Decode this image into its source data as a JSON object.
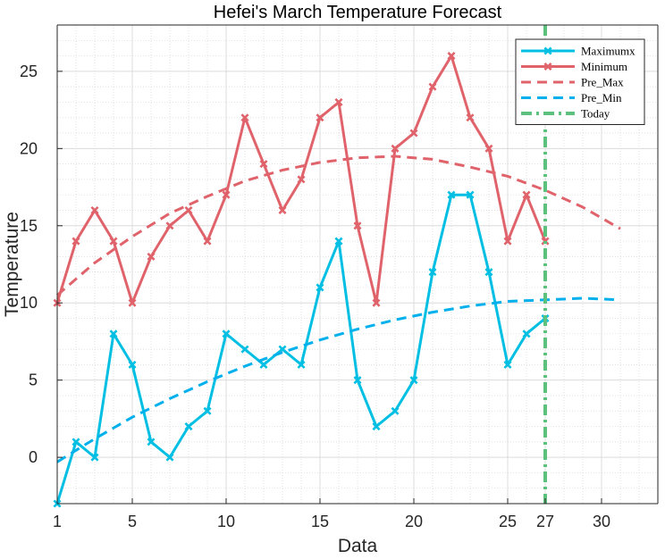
{
  "chart_data": {
    "type": "line",
    "title": "Hefei's March Temperature Forecast",
    "xlabel": "Data",
    "ylabel": "Temperature",
    "xlim": [
      1,
      33
    ],
    "ylim": [
      -3,
      28
    ],
    "x_ticks": [
      1,
      5,
      10,
      15,
      20,
      25,
      27,
      30
    ],
    "y_ticks": [
      0,
      5,
      10,
      15,
      20,
      25
    ],
    "grid": true,
    "minor_grid": true,
    "legend_position": "top-right",
    "x": [
      1,
      2,
      3,
      4,
      5,
      6,
      7,
      8,
      9,
      10,
      11,
      12,
      13,
      14,
      15,
      16,
      17,
      18,
      19,
      20,
      21,
      22,
      23,
      24,
      25,
      26,
      27
    ],
    "series": [
      {
        "name": "Maximumx",
        "style": "solid-marker",
        "color": "#00bfe3",
        "values": [
          -3,
          1,
          0,
          8,
          6,
          1,
          0,
          2,
          3,
          8,
          7,
          6,
          7,
          6,
          11,
          14,
          5,
          2,
          3,
          5,
          12,
          17,
          17,
          12,
          6,
          8,
          9
        ]
      },
      {
        "name": "Minimum",
        "style": "solid-marker",
        "color": "#e0636b",
        "values": [
          10,
          14,
          16,
          14,
          10,
          13,
          15,
          16,
          14,
          17,
          22,
          19,
          16,
          18,
          22,
          23,
          15,
          10,
          20,
          21,
          24,
          26,
          22,
          20,
          14,
          17,
          14
        ]
      },
      {
        "name": "Pre_Max",
        "style": "dashed",
        "color": "#e0636b",
        "x": [
          1,
          3,
          5,
          7,
          9,
          11,
          13,
          15,
          17,
          19,
          21,
          23,
          25,
          27,
          29,
          31
        ],
        "values": [
          10.5,
          12.6,
          14.3,
          15.8,
          16.9,
          17.9,
          18.6,
          19.1,
          19.4,
          19.5,
          19.3,
          18.8,
          18.2,
          17.3,
          16.2,
          14.8
        ]
      },
      {
        "name": "Pre_Min",
        "style": "dashed",
        "color": "#00b0ec",
        "x": [
          1,
          3,
          5,
          7,
          9,
          11,
          13,
          15,
          17,
          19,
          21,
          23,
          25,
          27,
          29,
          31
        ],
        "values": [
          -0.3,
          1.2,
          2.6,
          3.8,
          4.9,
          5.9,
          6.8,
          7.6,
          8.3,
          8.9,
          9.4,
          9.8,
          10.1,
          10.2,
          10.3,
          10.2
        ]
      },
      {
        "name": "Today",
        "style": "dash-dot-vertical",
        "color": "#5cc17c",
        "x_value": 27
      }
    ]
  }
}
